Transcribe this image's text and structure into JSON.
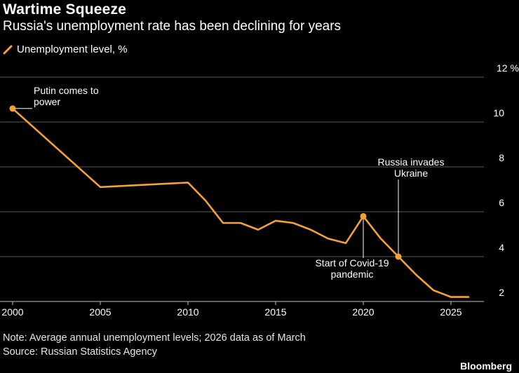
{
  "header": {
    "title": "Wartime Squeeze",
    "subtitle": "Russia's unemployment rate has been declining for years"
  },
  "legend": {
    "label": "Unemployment level, %",
    "icon": "line-swatch-icon"
  },
  "footer": {
    "note": "Note: Average annual unemployment levels; 2026 data as of March",
    "source": "Source: Russian Statistics Agency",
    "brand": "Bloomberg"
  },
  "colors": {
    "line": "#F5A139",
    "grid": "#5a5a5a",
    "background": "#000000",
    "text": "#ffffff"
  },
  "chart_data": {
    "type": "line",
    "title": "Wartime Squeeze",
    "subtitle": "Russia's unemployment rate has been declining for years",
    "xlabel": "",
    "ylabel": "",
    "y_unit": "%",
    "xlim": [
      2000,
      2026
    ],
    "ylim": [
      2,
      12
    ],
    "x_ticks": [
      2000,
      2005,
      2010,
      2015,
      2020,
      2025
    ],
    "y_ticks": [
      2,
      4,
      6,
      8,
      10,
      12
    ],
    "y_tick_labels": [
      "2",
      "4",
      "6",
      "8",
      "10",
      "12 %"
    ],
    "grid": "horizontal",
    "legend_position": "top-left",
    "series": [
      {
        "name": "Unemployment level, %",
        "x": [
          2000,
          2005,
          2010,
          2011,
          2012,
          2013,
          2014,
          2015,
          2016,
          2017,
          2018,
          2019,
          2020,
          2021,
          2022,
          2023,
          2024,
          2025,
          2026
        ],
        "values": [
          10.6,
          7.1,
          7.3,
          6.5,
          5.5,
          5.5,
          5.2,
          5.6,
          5.5,
          5.2,
          4.8,
          4.6,
          5.8,
          4.8,
          4.0,
          3.2,
          2.5,
          2.2,
          2.2
        ]
      }
    ],
    "annotations": [
      {
        "text": "Putin comes to power",
        "lines": [
          "Putin comes to",
          "power"
        ],
        "x": 2000,
        "y": 10.6
      },
      {
        "text": "Start of Covid-19 pandemic",
        "lines": [
          "Start of Covid-19",
          "pandemic"
        ],
        "x": 2020,
        "y": 5.8
      },
      {
        "text": "Russia invades Ukraine",
        "lines": [
          "Russia invades",
          "Ukraine"
        ],
        "x": 2022,
        "y": 4.0
      }
    ]
  }
}
